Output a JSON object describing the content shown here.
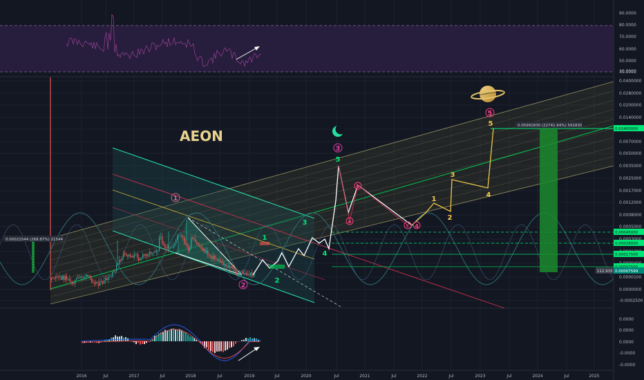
{
  "chart_data": {
    "type": "candlestick",
    "title": "AEON",
    "x_ticks": [
      "2016",
      "Jul",
      "2017",
      "Jul",
      "2018",
      "Jul",
      "2019",
      "Jul",
      "2020",
      "Jul",
      "2021",
      "Jul",
      "2022",
      "Jul",
      "2023",
      "Jul",
      "2024",
      "Jul",
      "2025"
    ],
    "price_axis_ticks": [
      "0.0400000",
      "0.0280000",
      "0.0200000",
      "0.0140000",
      "0.0100000",
      "0.0070000",
      "0.0050000",
      "0.0035000",
      "0.0025000",
      "0.0017000",
      "0.0012000",
      "0.0008000",
      "0.0005000",
      "0.0003000",
      "0.0001300",
      "0.0000400",
      "0.0000100",
      "0.0000000",
      "-0.0002500"
    ],
    "price_scale": "log",
    "rsi_axis_ticks": [
      "90.0000",
      "80.0000",
      "70.0000",
      "60.0000",
      "50.0000",
      "40.0000",
      "30.0000"
    ],
    "rsi_bands": [
      30,
      70
    ],
    "macd_axis_ticks": [
      "0.0000",
      "0.0000",
      "0.0000",
      "-0.0000",
      "-0.0000"
    ],
    "price_tags": [
      {
        "text": "0.02400000",
        "color": "#00e676"
      },
      {
        "text": "0.00045000",
        "color": "#00e676"
      },
      {
        "text": "0.00028000",
        "color": "#00e676"
      },
      {
        "text": "0.00017500",
        "color": "#00e676"
      },
      {
        "text": "0.00007500",
        "color": "#00e676"
      },
      {
        "text": "112.935",
        "color": "#787b86"
      },
      {
        "text": "0.00007599",
        "color": "#00897b"
      }
    ],
    "measure_labels": [
      {
        "text": "0.05991830 (22741.64%) 591830",
        "color": "#9598a1"
      },
      {
        "text": "0.00021544 (268.87%) 21544",
        "color": "#9598a1"
      }
    ],
    "wave_labels": [
      {
        "text": "1",
        "color": "#c96b8f",
        "circled": true
      },
      {
        "text": "2",
        "color": "#e040a0",
        "circled": true
      },
      {
        "text": "3",
        "color": "#e040a0",
        "circled": true
      },
      {
        "text": "5",
        "color": "#ff4081",
        "circled": true
      },
      {
        "text": "1",
        "color": "#00e676",
        "circled": false
      },
      {
        "text": "2",
        "color": "#00e676",
        "circled": false
      },
      {
        "text": "3",
        "color": "#00e676",
        "circled": false
      },
      {
        "text": "4",
        "color": "#00e676",
        "circled": false
      },
      {
        "text": "5",
        "color": "#00e676",
        "circled": false
      },
      {
        "text": "1",
        "color": "#f2c94c",
        "circled": false
      },
      {
        "text": "2",
        "color": "#f2c94c",
        "circled": false
      },
      {
        "text": "3",
        "color": "#f2c94c",
        "circled": false
      },
      {
        "text": "4",
        "color": "#f2c94c",
        "circled": false
      },
      {
        "text": "5",
        "color": "#f2c94c",
        "circled": false
      },
      {
        "text": "4",
        "color": "#ff4081",
        "circled": true
      },
      {
        "text": "a",
        "color": "#ff4081",
        "circled": true
      },
      {
        "text": "b",
        "color": "#ff4081",
        "circled": true
      },
      {
        "text": "c",
        "color": "#ff4081",
        "circled": true
      }
    ],
    "icons": [
      "crescent-moon-icon",
      "saturn-planet-icon"
    ],
    "colors": {
      "background": "#131722",
      "bull": "#26a69a",
      "bear": "#ef5350",
      "rsi": "#7b2d7b",
      "projection_white": "#ffffff",
      "projection_gold": "#f2c94c",
      "channel_green": "#00c853",
      "target_bar": "#1b8a2e"
    }
  }
}
